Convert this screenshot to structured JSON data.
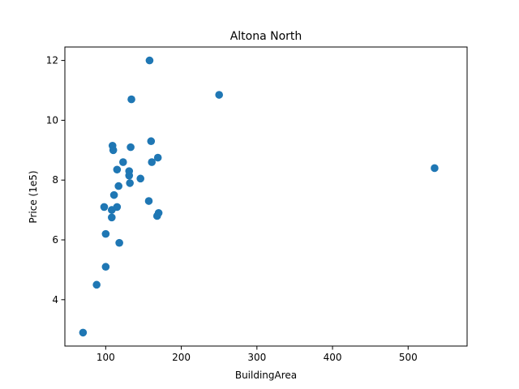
{
  "chart_data": {
    "type": "scatter",
    "title": "Altona North",
    "xlabel": "BuildingArea",
    "ylabel": "Price (1e5)",
    "xlim": [
      46,
      578
    ],
    "ylim": [
      2.45,
      12.45
    ],
    "xticks": [
      100,
      200,
      300,
      400,
      500
    ],
    "yticks": [
      4,
      6,
      8,
      10,
      12
    ],
    "xtick_labels": [
      "100",
      "200",
      "300",
      "400",
      "500"
    ],
    "ytick_labels": [
      "4",
      "6",
      "8",
      "10",
      "12"
    ],
    "grid": false,
    "legend": "none",
    "marker_color": "#1f77b4",
    "points": [
      {
        "x": 70,
        "y": 2.9
      },
      {
        "x": 88,
        "y": 4.5
      },
      {
        "x": 100,
        "y": 5.1
      },
      {
        "x": 100,
        "y": 6.2
      },
      {
        "x": 98,
        "y": 7.1
      },
      {
        "x": 108,
        "y": 6.75
      },
      {
        "x": 108,
        "y": 7.0
      },
      {
        "x": 111,
        "y": 7.5
      },
      {
        "x": 115,
        "y": 7.1
      },
      {
        "x": 118,
        "y": 5.9
      },
      {
        "x": 117,
        "y": 7.8
      },
      {
        "x": 115,
        "y": 8.35
      },
      {
        "x": 109,
        "y": 9.15
      },
      {
        "x": 110,
        "y": 9.0
      },
      {
        "x": 123,
        "y": 8.6
      },
      {
        "x": 131,
        "y": 8.3
      },
      {
        "x": 131,
        "y": 8.15
      },
      {
        "x": 132,
        "y": 7.9
      },
      {
        "x": 133,
        "y": 9.1
      },
      {
        "x": 134,
        "y": 10.7
      },
      {
        "x": 146,
        "y": 8.05
      },
      {
        "x": 157,
        "y": 7.3
      },
      {
        "x": 158,
        "y": 12.0
      },
      {
        "x": 160,
        "y": 9.3
      },
      {
        "x": 161,
        "y": 8.6
      },
      {
        "x": 168,
        "y": 6.8
      },
      {
        "x": 170,
        "y": 6.9
      },
      {
        "x": 169,
        "y": 8.75
      },
      {
        "x": 250,
        "y": 10.85
      },
      {
        "x": 535,
        "y": 8.4
      }
    ]
  }
}
